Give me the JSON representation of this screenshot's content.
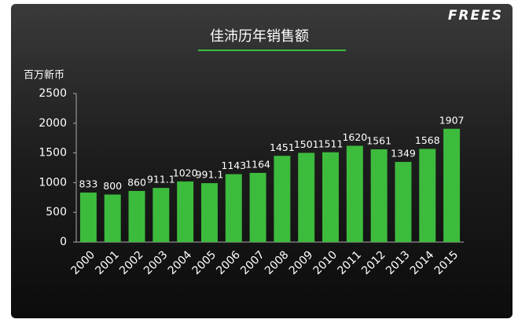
{
  "logo": "FREES",
  "chart_data": {
    "type": "bar",
    "title": "佳沛历年销售额",
    "y_label": "百万新币",
    "categories": [
      "2000",
      "2001",
      "2002",
      "2003",
      "2004",
      "2005",
      "2006",
      "2007",
      "2008",
      "2009",
      "2010",
      "2011",
      "2012",
      "2013",
      "2014",
      "2015"
    ],
    "values": [
      833,
      800,
      860,
      911.1,
      1020,
      991.1,
      1143,
      1164,
      1451,
      1501,
      1511,
      1620,
      1561,
      1349,
      1568,
      1907
    ],
    "color": "#3dbb3d",
    "ylim": [
      0,
      2500
    ],
    "yticks": [
      0,
      500,
      1000,
      1500,
      2000,
      2500
    ]
  }
}
